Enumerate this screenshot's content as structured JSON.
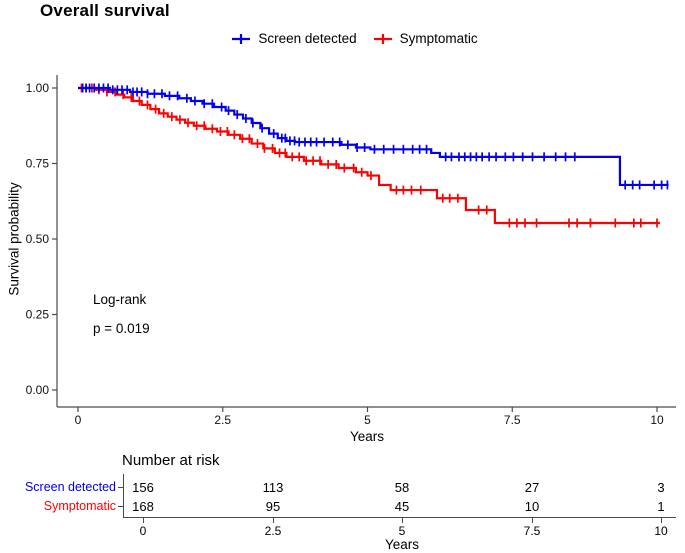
{
  "title": "Overall survival",
  "colors": {
    "screen_detected": "#0000ee",
    "symptomatic": "#ff0000",
    "axis": "#4a4a4a",
    "text": "#000000"
  },
  "legend": {
    "items": [
      {
        "label": "Screen detected",
        "color": "#0000ee"
      },
      {
        "label": "Symptomatic",
        "color": "#ff0000"
      }
    ]
  },
  "annotation": {
    "line1": "Log-rank",
    "line2": "p = 0.019"
  },
  "chart_data": {
    "type": "line",
    "subtype": "kaplan-meier-step",
    "title": "Overall survival",
    "xlabel": "Years",
    "ylabel": "Survival probability",
    "xlim": [
      0,
      10.3
    ],
    "ylim": [
      0,
      1.0
    ],
    "xticks": [
      0,
      2.5,
      5,
      7.5,
      10
    ],
    "xtick_labels": [
      "0",
      "2.5",
      "5",
      "7.5",
      "10"
    ],
    "yticks": [
      0,
      0.25,
      0.5,
      0.75,
      1.0
    ],
    "ytick_labels": [
      "0.00",
      "0.25",
      "0.50",
      "0.75",
      "1.00"
    ],
    "grid": false,
    "legend_position": "top",
    "pvalue_text": [
      "Log-rank",
      "p = 0.019"
    ],
    "series": [
      {
        "name": "Symptomatic",
        "color": "#ff0000",
        "start": [
          0,
          1.0
        ],
        "steps": [
          [
            0.3,
            0.994
          ],
          [
            0.5,
            0.987
          ],
          [
            0.65,
            0.978
          ],
          [
            0.8,
            0.969
          ],
          [
            0.95,
            0.957
          ],
          [
            1.1,
            0.944
          ],
          [
            1.25,
            0.93
          ],
          [
            1.4,
            0.916
          ],
          [
            1.55,
            0.905
          ],
          [
            1.7,
            0.895
          ],
          [
            1.85,
            0.885
          ],
          [
            2.0,
            0.875
          ],
          [
            2.2,
            0.865
          ],
          [
            2.4,
            0.856
          ],
          [
            2.6,
            0.845
          ],
          [
            2.8,
            0.832
          ],
          [
            3.0,
            0.816
          ],
          [
            3.2,
            0.8
          ],
          [
            3.4,
            0.785
          ],
          [
            3.6,
            0.772
          ],
          [
            3.9,
            0.759
          ],
          [
            4.2,
            0.747
          ],
          [
            4.5,
            0.735
          ],
          [
            4.8,
            0.721
          ],
          [
            5.0,
            0.71
          ],
          [
            5.2,
            0.679
          ],
          [
            5.4,
            0.662
          ],
          [
            6.2,
            0.635
          ],
          [
            6.7,
            0.596
          ],
          [
            7.2,
            0.553
          ]
        ],
        "end_time": 10.05,
        "censor_times": [
          0.06,
          0.14,
          0.24,
          0.36,
          0.5,
          0.64,
          0.78,
          0.92,
          1.06,
          1.2,
          1.34,
          1.48,
          1.62,
          1.76,
          1.9,
          2.05,
          2.18,
          2.32,
          2.46,
          2.58,
          2.7,
          2.84,
          2.96,
          3.1,
          3.22,
          3.36,
          3.48,
          3.58,
          3.7,
          3.82,
          3.94,
          4.06,
          4.18,
          4.32,
          4.46,
          4.6,
          4.76,
          4.9,
          5.06,
          5.5,
          5.62,
          5.76,
          5.92,
          6.3,
          6.42,
          6.56,
          6.92,
          7.06,
          7.45,
          7.58,
          7.72,
          7.92,
          8.48,
          8.62,
          8.85,
          9.28,
          9.6,
          9.72,
          10.0
        ]
      },
      {
        "name": "Screen detected",
        "color": "#0000ee",
        "start": [
          0,
          1.0
        ],
        "steps": [
          [
            0.55,
            0.994
          ],
          [
            0.9,
            0.987
          ],
          [
            1.2,
            0.981
          ],
          [
            1.5,
            0.974
          ],
          [
            1.75,
            0.966
          ],
          [
            1.95,
            0.957
          ],
          [
            2.15,
            0.948
          ],
          [
            2.35,
            0.937
          ],
          [
            2.55,
            0.925
          ],
          [
            2.7,
            0.912
          ],
          [
            2.85,
            0.899
          ],
          [
            3.0,
            0.884
          ],
          [
            3.15,
            0.867
          ],
          [
            3.3,
            0.849
          ],
          [
            3.45,
            0.834
          ],
          [
            3.6,
            0.825
          ],
          [
            3.75,
            0.821
          ],
          [
            4.55,
            0.812
          ],
          [
            4.8,
            0.803
          ],
          [
            5.05,
            0.797
          ],
          [
            6.1,
            0.785
          ],
          [
            6.25,
            0.772
          ],
          [
            9.36,
            0.679
          ]
        ],
        "end_time": 10.2,
        "censor_times": [
          0.08,
          0.14,
          0.2,
          0.28,
          0.36,
          0.44,
          0.52,
          0.6,
          0.68,
          0.76,
          0.85,
          0.95,
          1.02,
          1.1,
          1.2,
          1.32,
          1.45,
          1.58,
          1.72,
          1.88,
          2.02,
          2.18,
          2.32,
          2.48,
          2.6,
          2.75,
          2.9,
          3.02,
          3.18,
          3.38,
          3.52,
          3.58,
          3.66,
          3.74,
          3.82,
          3.92,
          4.02,
          4.12,
          4.25,
          4.4,
          4.52,
          4.66,
          4.82,
          4.95,
          5.12,
          5.28,
          5.45,
          5.62,
          5.78,
          5.9,
          6.02,
          6.35,
          6.45,
          6.58,
          6.68,
          6.78,
          6.88,
          6.98,
          7.1,
          7.22,
          7.38,
          7.52,
          7.68,
          7.85,
          8.05,
          8.25,
          8.42,
          8.58,
          9.45,
          9.58,
          9.7,
          9.95,
          10.08,
          10.18
        ]
      }
    ]
  },
  "risk_table": {
    "title": "Number at risk",
    "xlabel": "Years",
    "time_points": [
      0,
      2.5,
      5,
      7.5,
      10
    ],
    "tick_labels": [
      "0",
      "2.5",
      "5",
      "7.5",
      "10"
    ],
    "rows": [
      {
        "label": "Screen detected",
        "color": "#0000ee",
        "counts": [
          "156",
          "113",
          "58",
          "27",
          "3"
        ]
      },
      {
        "label": "Symptomatic",
        "color": "#ff0000",
        "counts": [
          "168",
          "95",
          "45",
          "10",
          "1"
        ]
      }
    ]
  }
}
